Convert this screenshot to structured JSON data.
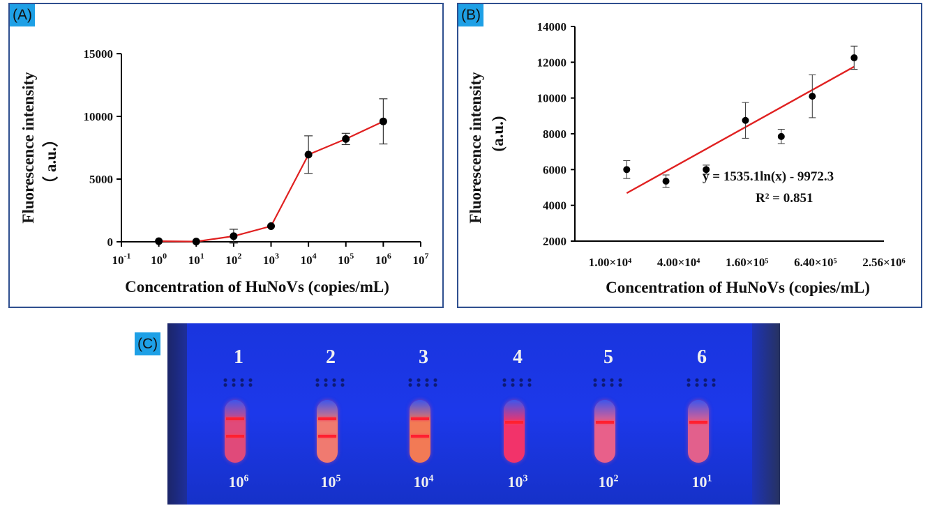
{
  "panels": {
    "a": {
      "label": "(A)",
      "chart_data": {
        "type": "line",
        "xscale": "log",
        "x": [
          1,
          10,
          100,
          1000,
          10000,
          100000,
          1000000
        ],
        "y": [
          50,
          20,
          450,
          1250,
          6950,
          8200,
          9600
        ],
        "yerr": [
          0,
          0,
          550,
          0,
          1500,
          450,
          1800
        ],
        "xlabel": "Concentration of HuNoVs (copies/mL)",
        "ylabel": "Fluorescence intensity",
        "ylabel2": "（ a.u.）",
        "xlim": [
          0.1,
          10000000
        ],
        "ylim": [
          0,
          15000
        ],
        "yticks": [
          "0",
          "5000",
          "10000",
          "15000"
        ],
        "xticks": [
          {
            "base": "10",
            "exp": "-1"
          },
          {
            "base": "10",
            "exp": "0"
          },
          {
            "base": "10",
            "exp": "1"
          },
          {
            "base": "10",
            "exp": "2"
          },
          {
            "base": "10",
            "exp": "3"
          },
          {
            "base": "10",
            "exp": "4"
          },
          {
            "base": "10",
            "exp": "5"
          },
          {
            "base": "10",
            "exp": "6"
          },
          {
            "base": "10",
            "exp": "7"
          }
        ],
        "line_color": "#e02020",
        "marker_color": "#000000"
      }
    },
    "b": {
      "label": "(B)",
      "chart_data": {
        "type": "scatter",
        "xscale": "log",
        "x": [
          14000,
          31000,
          70000,
          155000,
          320000,
          600000,
          1400000
        ],
        "y": [
          6000,
          5350,
          6000,
          8750,
          7850,
          10100,
          12250
        ],
        "yerr": [
          500,
          350,
          250,
          1000,
          400,
          1200,
          650
        ],
        "trendline": {
          "type": "log",
          "a": 1535.1,
          "b": -9972.3,
          "x_range": [
            14000,
            1400000
          ],
          "color": "#e02020"
        },
        "equation": "y = 1535.1ln(x) - 9972.3",
        "r2": "R² = 0.851",
        "xlabel": "Concentration of HuNoVs (copies/mL)",
        "ylabel": "Fluorescence intensity",
        "ylabel2": "(a.u.)",
        "xlim": [
          4900,
          2560000
        ],
        "ylim": [
          2000,
          14000
        ],
        "yticks": [
          "2000",
          "4000",
          "6000",
          "8000",
          "10000",
          "12000",
          "14000"
        ],
        "xticks": [
          "1.00×10⁴",
          "4.00×10⁴",
          "1.60×10⁵",
          "6.40×10⁵",
          "2.56×10⁶"
        ],
        "xtick_values": [
          10000,
          40000,
          160000,
          640000,
          2560000
        ]
      }
    },
    "c": {
      "label": "(C)",
      "strips": [
        {
          "num": "1",
          "base": "10",
          "exp": "6",
          "lines": 2,
          "tube": "#e04a7a"
        },
        {
          "num": "2",
          "base": "10",
          "exp": "5",
          "lines": 2,
          "tube": "#f07a70"
        },
        {
          "num": "3",
          "base": "10",
          "exp": "4",
          "lines": 2,
          "tube": "#f27a55"
        },
        {
          "num": "4",
          "base": "10",
          "exp": "3",
          "lines": 1,
          "tube": "#f2336a"
        },
        {
          "num": "5",
          "base": "10",
          "exp": "2",
          "lines": 1,
          "tube": "#e8608a"
        },
        {
          "num": "6",
          "base": "10",
          "exp": "1",
          "lines": 1,
          "tube": "#e2608c"
        }
      ]
    }
  }
}
